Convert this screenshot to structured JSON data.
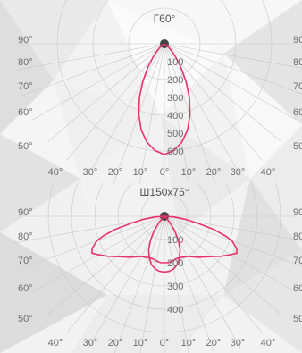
{
  "colors": {
    "curve": "#e8336a",
    "grid": "#c8c8c8",
    "text": "#6f6f6f",
    "background": "#f2f2f2"
  },
  "chart_data": [
    {
      "type": "polar",
      "title": "Г60°",
      "radial_ticks": [
        "100",
        "200",
        "300",
        "400",
        "500",
        "600"
      ],
      "left_angle_labels": [
        "90°",
        "80°",
        "70°",
        "60°",
        "50°"
      ],
      "right_angle_labels": [
        "90",
        "80",
        "70",
        "60",
        "50"
      ],
      "bottom_angle_labels": [
        "40°",
        "30°",
        "20°",
        "10°",
        "0°",
        "10°",
        "20°",
        "30°",
        "40°"
      ],
      "rmax": 600,
      "series": [
        {
          "angles": [
            0,
            5,
            10,
            15,
            20,
            25,
            30,
            35,
            40,
            45,
            50,
            55,
            60
          ],
          "values": [
            620,
            600,
            560,
            500,
            420,
            330,
            240,
            160,
            100,
            60,
            35,
            20,
            10
          ]
        }
      ]
    },
    {
      "type": "polar",
      "title": "Ш150x75°",
      "radial_ticks": [
        "100",
        "200",
        "300",
        "400"
      ],
      "left_angle_labels": [
        "90°",
        "80°",
        "70°",
        "60°",
        "50°"
      ],
      "right_angle_labels": [
        "90",
        "80",
        "70",
        "60",
        "50"
      ],
      "bottom_angle_labels": [
        "40°",
        "30°",
        "20°",
        "10°",
        "0°",
        "10°",
        "20°",
        "30°",
        "40°"
      ],
      "rmax": 400,
      "series": [
        {
          "angles": [
            0,
            5,
            10,
            15,
            20,
            30,
            40,
            50,
            55,
            60,
            63,
            66,
            70,
            72,
            75,
            78,
            82,
            86,
            90
          ],
          "values": [
            200,
            200,
            195,
            190,
            190,
            200,
            230,
            270,
            300,
            330,
            350,
            340,
            310,
            280,
            220,
            150,
            90,
            40,
            0
          ]
        },
        {
          "angles": [
            0,
            5,
            10,
            15,
            20,
            25,
            30,
            35,
            40,
            45,
            50
          ],
          "values": [
            240,
            238,
            230,
            215,
            190,
            160,
            120,
            80,
            40,
            15,
            0
          ]
        }
      ]
    }
  ]
}
